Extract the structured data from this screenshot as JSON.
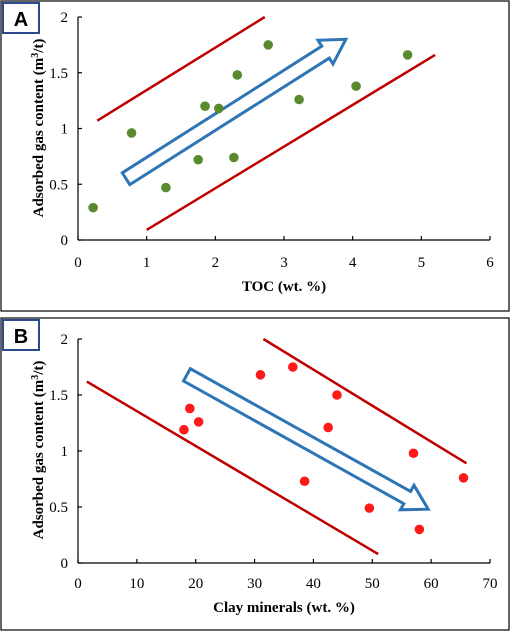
{
  "figure": {
    "colors": {
      "points_a": "#5a8a2e",
      "points_b": "#ff1a1a",
      "bounds": "#c00000",
      "trend_arrow": "#2e75b6",
      "badge_border": "#2b4a8c"
    }
  },
  "chart_data": [
    {
      "type": "scatter",
      "panel_label": "A",
      "xlabel": "TOC (wt. %)",
      "ylabel": "Adsorbed gas content (m3/t)",
      "ylabel_parts": {
        "pre": "Adsorbed gas content (m",
        "sup": "3",
        "post": "/t)"
      },
      "xlim": [
        0,
        6
      ],
      "ylim": [
        0,
        2
      ],
      "xticks": [
        "0",
        "1",
        "2",
        "3",
        "4",
        "5",
        "6"
      ],
      "yticks": [
        "0",
        "0.5",
        "1",
        "1.5",
        "2"
      ],
      "points": [
        {
          "x": 0.22,
          "y": 0.29
        },
        {
          "x": 0.78,
          "y": 0.96
        },
        {
          "x": 1.28,
          "y": 0.47
        },
        {
          "x": 1.75,
          "y": 0.72
        },
        {
          "x": 1.85,
          "y": 1.2
        },
        {
          "x": 2.05,
          "y": 1.18
        },
        {
          "x": 2.27,
          "y": 0.74
        },
        {
          "x": 2.32,
          "y": 1.48
        },
        {
          "x": 2.77,
          "y": 1.75
        },
        {
          "x": 3.22,
          "y": 1.26
        },
        {
          "x": 4.05,
          "y": 1.38
        },
        {
          "x": 4.8,
          "y": 1.66
        }
      ],
      "bound_lines": [
        {
          "x1": 0.28,
          "y1": 1.07,
          "x2": 2.72,
          "y2": 2.0
        },
        {
          "x1": 1.0,
          "y1": 0.09,
          "x2": 5.2,
          "y2": 1.66
        }
      ],
      "trend_arrow": {
        "x1": 0.7,
        "y1": 0.55,
        "x2": 3.9,
        "y2": 1.8
      }
    },
    {
      "type": "scatter",
      "panel_label": "B",
      "xlabel": "Clay minerals  (wt. %)",
      "ylabel": "Adsorbed gas content (m3/t)",
      "ylabel_parts": {
        "pre": "Adsorbed gas content (m",
        "sup": "3",
        "post": "/t)"
      },
      "xlim": [
        0,
        70
      ],
      "ylim": [
        0,
        2
      ],
      "xticks": [
        "0",
        "10",
        "20",
        "30",
        "40",
        "50",
        "60",
        "70"
      ],
      "yticks": [
        "0",
        "0.5",
        "1",
        "1.5",
        "2"
      ],
      "points": [
        {
          "x": 18.0,
          "y": 1.19
        },
        {
          "x": 19.0,
          "y": 1.38
        },
        {
          "x": 20.5,
          "y": 1.26
        },
        {
          "x": 31.0,
          "y": 1.68
        },
        {
          "x": 36.5,
          "y": 1.75
        },
        {
          "x": 38.5,
          "y": 0.73
        },
        {
          "x": 42.5,
          "y": 1.21
        },
        {
          "x": 44.0,
          "y": 1.5
        },
        {
          "x": 49.5,
          "y": 0.49
        },
        {
          "x": 57.0,
          "y": 0.98
        },
        {
          "x": 58.0,
          "y": 0.3
        },
        {
          "x": 65.5,
          "y": 0.76
        }
      ],
      "bound_lines": [
        {
          "x1": 1.5,
          "y1": 1.62,
          "x2": 51.0,
          "y2": 0.08
        },
        {
          "x1": 31.5,
          "y1": 2.0,
          "x2": 66.0,
          "y2": 0.89
        }
      ],
      "trend_arrow": {
        "x1": 18.5,
        "y1": 1.68,
        "x2": 59.5,
        "y2": 0.48
      }
    }
  ]
}
